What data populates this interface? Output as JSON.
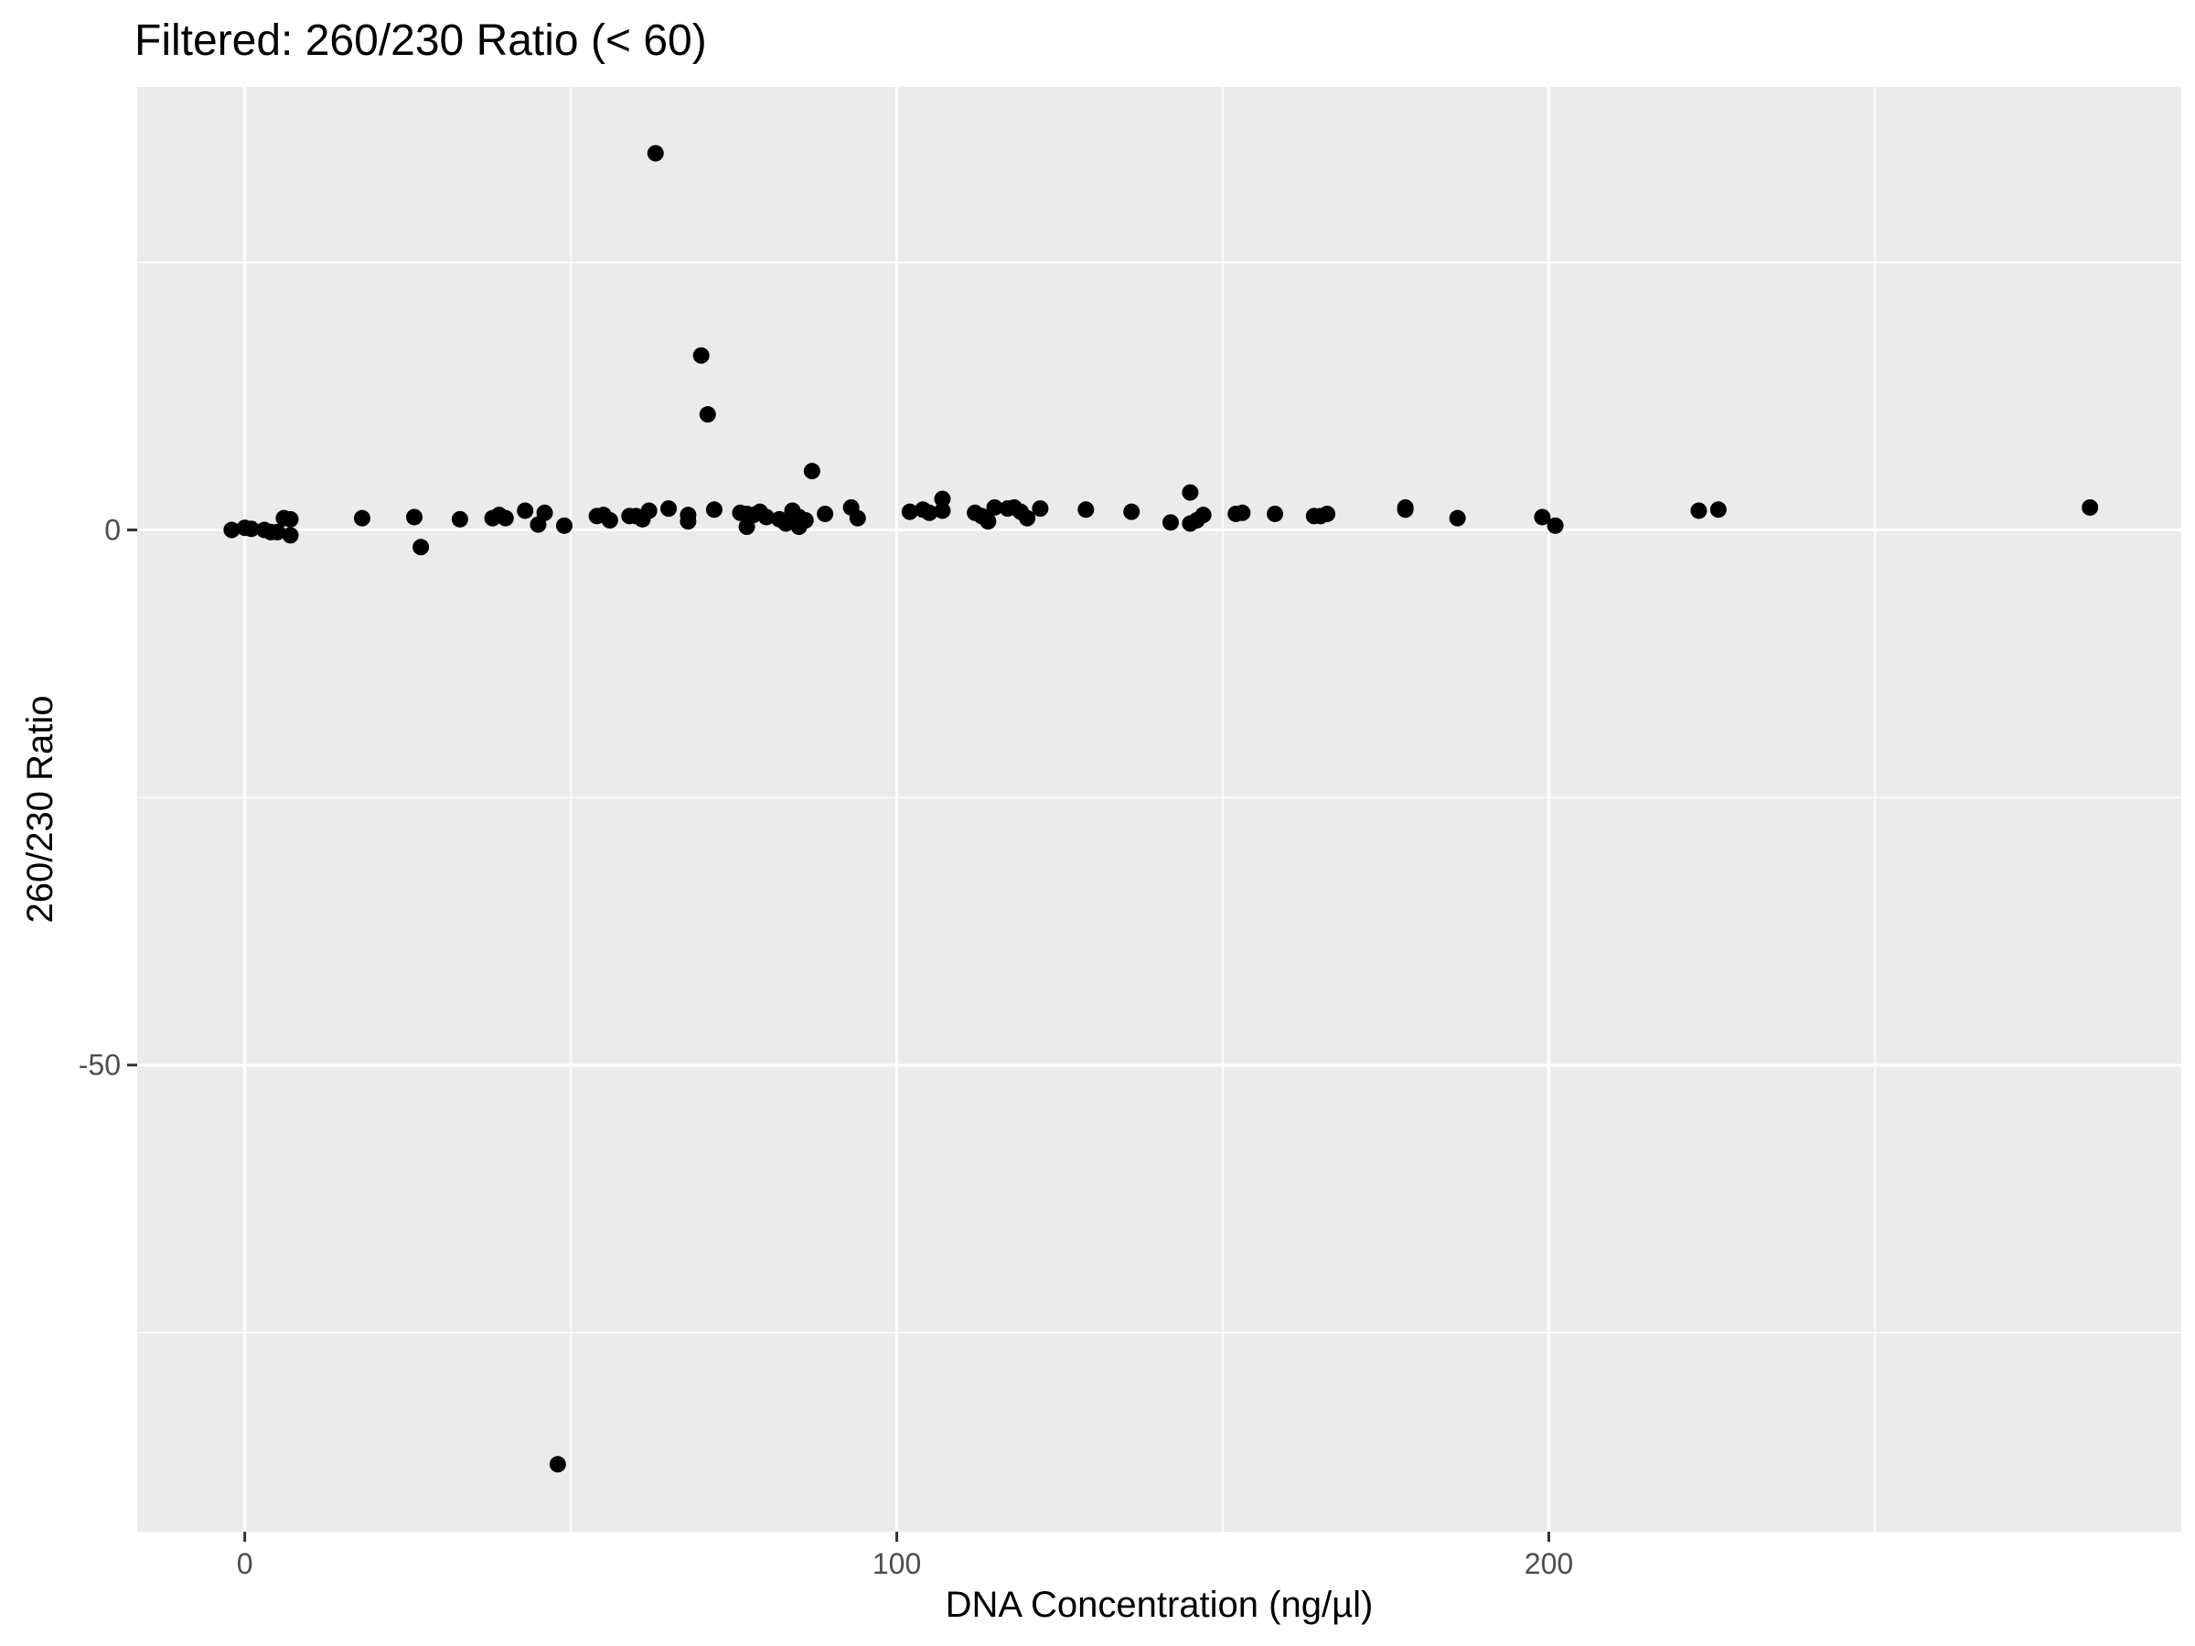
{
  "chart_data": {
    "type": "scatter",
    "title": "Filtered: 260/230 Ratio (< 60)",
    "xlabel": "DNA Concentration (ng/µl)",
    "ylabel": "260/230 Ratio",
    "xlim": [
      -16.5,
      297
    ],
    "ylim": [
      -93.6,
      41.4
    ],
    "x_ticks": [
      0,
      100,
      200
    ],
    "x_tick_labels": [
      "0",
      "100",
      "200"
    ],
    "x_minor": [
      50,
      150,
      250
    ],
    "y_ticks": [
      0,
      -50
    ],
    "y_tick_labels": [
      "0",
      "-50"
    ],
    "y_minor": [
      25,
      -25,
      -75
    ],
    "grid": true,
    "background": "#ebebeb",
    "grid_color": "#ffffff",
    "point_color": "#000000",
    "series": [
      {
        "points": [
          [
            -2,
            0.0
          ],
          [
            0,
            0.2
          ],
          [
            1,
            0.1
          ],
          [
            3,
            0.0
          ],
          [
            4,
            -0.2
          ],
          [
            5,
            -0.2
          ],
          [
            6,
            1.1
          ],
          [
            7,
            -0.5
          ],
          [
            7,
            1.0
          ],
          [
            18,
            1.1
          ],
          [
            26,
            1.2
          ],
          [
            27,
            -1.6
          ],
          [
            33,
            1.0
          ],
          [
            38,
            1.1
          ],
          [
            39,
            1.4
          ],
          [
            40,
            1.1
          ],
          [
            43,
            1.8
          ],
          [
            45,
            0.5
          ],
          [
            46,
            1.6
          ],
          [
            48,
            -87.3
          ],
          [
            49,
            0.4
          ],
          [
            54,
            1.3
          ],
          [
            55,
            1.4
          ],
          [
            56,
            0.9
          ],
          [
            59,
            1.3
          ],
          [
            60,
            1.3
          ],
          [
            61,
            1.0
          ],
          [
            62,
            1.8
          ],
          [
            63,
            35.2
          ],
          [
            65,
            2.0
          ],
          [
            68,
            1.4
          ],
          [
            68,
            0.8
          ],
          [
            70,
            16.3
          ],
          [
            71,
            10.8
          ],
          [
            72,
            1.9
          ],
          [
            76,
            1.6
          ],
          [
            77,
            1.5
          ],
          [
            77,
            0.3
          ],
          [
            78,
            1.4
          ],
          [
            79,
            1.7
          ],
          [
            80,
            1.2
          ],
          [
            82,
            1.0
          ],
          [
            83,
            0.6
          ],
          [
            84,
            1.8
          ],
          [
            85,
            1.2
          ],
          [
            85,
            0.3
          ],
          [
            86,
            0.9
          ],
          [
            87,
            5.5
          ],
          [
            89,
            1.5
          ],
          [
            93,
            2.1
          ],
          [
            94,
            1.1
          ],
          [
            102,
            1.7
          ],
          [
            104,
            1.9
          ],
          [
            105,
            1.6
          ],
          [
            107,
            2.9
          ],
          [
            107,
            1.8
          ],
          [
            112,
            1.6
          ],
          [
            113,
            1.3
          ],
          [
            114,
            0.8
          ],
          [
            115,
            2.1
          ],
          [
            117,
            2.0
          ],
          [
            118,
            2.1
          ],
          [
            119,
            1.7
          ],
          [
            120,
            1.1
          ],
          [
            122,
            2.0
          ],
          [
            129,
            1.9
          ],
          [
            136,
            1.7
          ],
          [
            142,
            0.7
          ],
          [
            145,
            3.5
          ],
          [
            145,
            0.6
          ],
          [
            146,
            0.9
          ],
          [
            147,
            1.4
          ],
          [
            152,
            1.5
          ],
          [
            153,
            1.6
          ],
          [
            158,
            1.5
          ],
          [
            164,
            1.3
          ],
          [
            165,
            1.3
          ],
          [
            166,
            1.5
          ],
          [
            178,
            1.9
          ],
          [
            178,
            2.1
          ],
          [
            186,
            1.1
          ],
          [
            199,
            1.2
          ],
          [
            201,
            0.4
          ],
          [
            223,
            1.8
          ],
          [
            226,
            1.9
          ],
          [
            283,
            2.1
          ]
        ]
      }
    ]
  }
}
